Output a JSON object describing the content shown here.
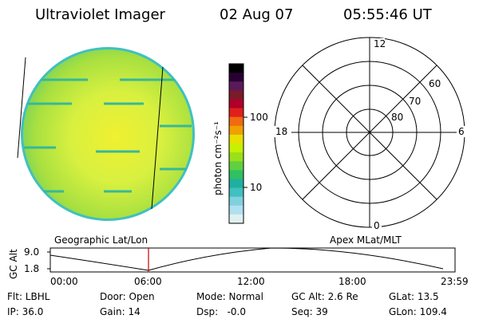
{
  "header": {
    "instrument": "Ultraviolet Imager",
    "date": "02 Aug 07",
    "time": "05:55:46 UT"
  },
  "colorbar": {
    "unit_label": "photon cm⁻²s⁻¹",
    "ticks": [
      "100",
      "10"
    ],
    "colors": [
      "#000000",
      "#2a0033",
      "#5a1a5a",
      "#7a1a2a",
      "#b0002a",
      "#e0201a",
      "#f06a10",
      "#f0a000",
      "#e8e000",
      "#c8f000",
      "#9ae01a",
      "#60d040",
      "#30c060",
      "#20b0a0",
      "#40c0c0",
      "#80d0e0",
      "#b0e0f0",
      "#e0f0f0"
    ]
  },
  "polar_plot": {
    "mlt_labels": {
      "top": "12",
      "bottom": "0",
      "left": "18",
      "right": "6"
    },
    "lat_labels": [
      "60",
      "70",
      "80"
    ]
  },
  "timeline": {
    "left_label": "Geographic Lat/Lon",
    "right_label": "Apex MLat/MLT",
    "axis_title": "GC Alt",
    "y_ticks": [
      "9.0",
      "1.8"
    ],
    "x_ticks": [
      "00:00",
      "06:00",
      "12:00",
      "18:00",
      "23:59"
    ],
    "marker_color": "#cc0000"
  },
  "status": {
    "flt": "Flt: LBHL",
    "door": "Door: Open",
    "mode": "Mode: Normal",
    "gc_alt": "GC Alt: 2.6 Re",
    "glat": "GLat:  13.5",
    "ip": "IP: 36.0",
    "gain": "Gain: 14",
    "dsp": "Dsp:   -0.0",
    "seq": "Seq: 39",
    "glon": "GLon: 109.4"
  }
}
